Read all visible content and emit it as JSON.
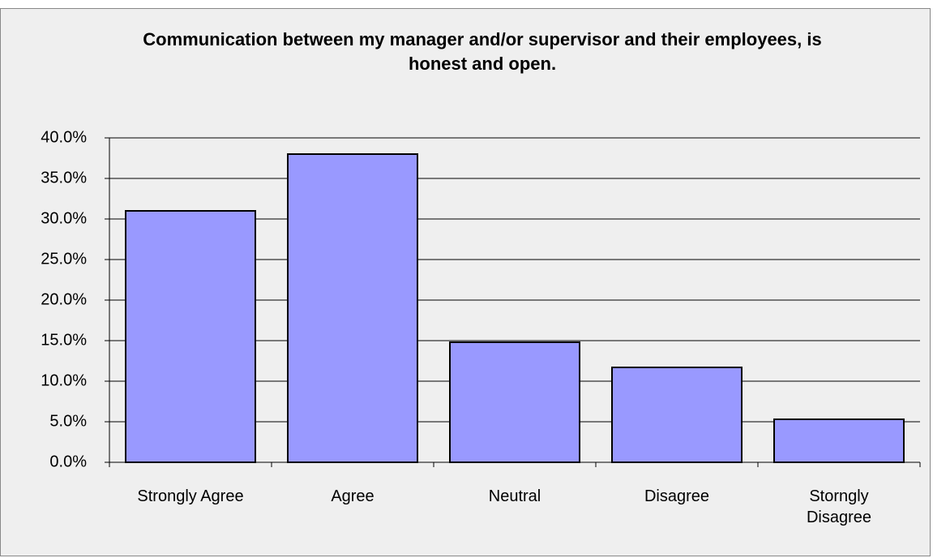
{
  "chart_data": {
    "type": "bar",
    "title": "Communication between my manager and/or supervisor and their employees, is honest and open.",
    "categories": [
      "Strongly Agree",
      "Agree",
      "Neutral",
      "Disagree",
      "Storngly Disagree"
    ],
    "values": [
      31.0,
      38.0,
      14.8,
      11.7,
      5.3
    ],
    "color": "#9999ff",
    "ylim": [
      0,
      40
    ],
    "yticks": [
      {
        "value": 0,
        "label": "0.0%"
      },
      {
        "value": 5,
        "label": "5.0%"
      },
      {
        "value": 10,
        "label": "10.0%"
      },
      {
        "value": 15,
        "label": "15.0%"
      },
      {
        "value": 20,
        "label": "20.0%"
      },
      {
        "value": 25,
        "label": "25.0%"
      },
      {
        "value": 30,
        "label": "30.0%"
      },
      {
        "value": 35,
        "label": "35.0%"
      },
      {
        "value": 40,
        "label": "40.0%"
      }
    ],
    "grid": true
  }
}
